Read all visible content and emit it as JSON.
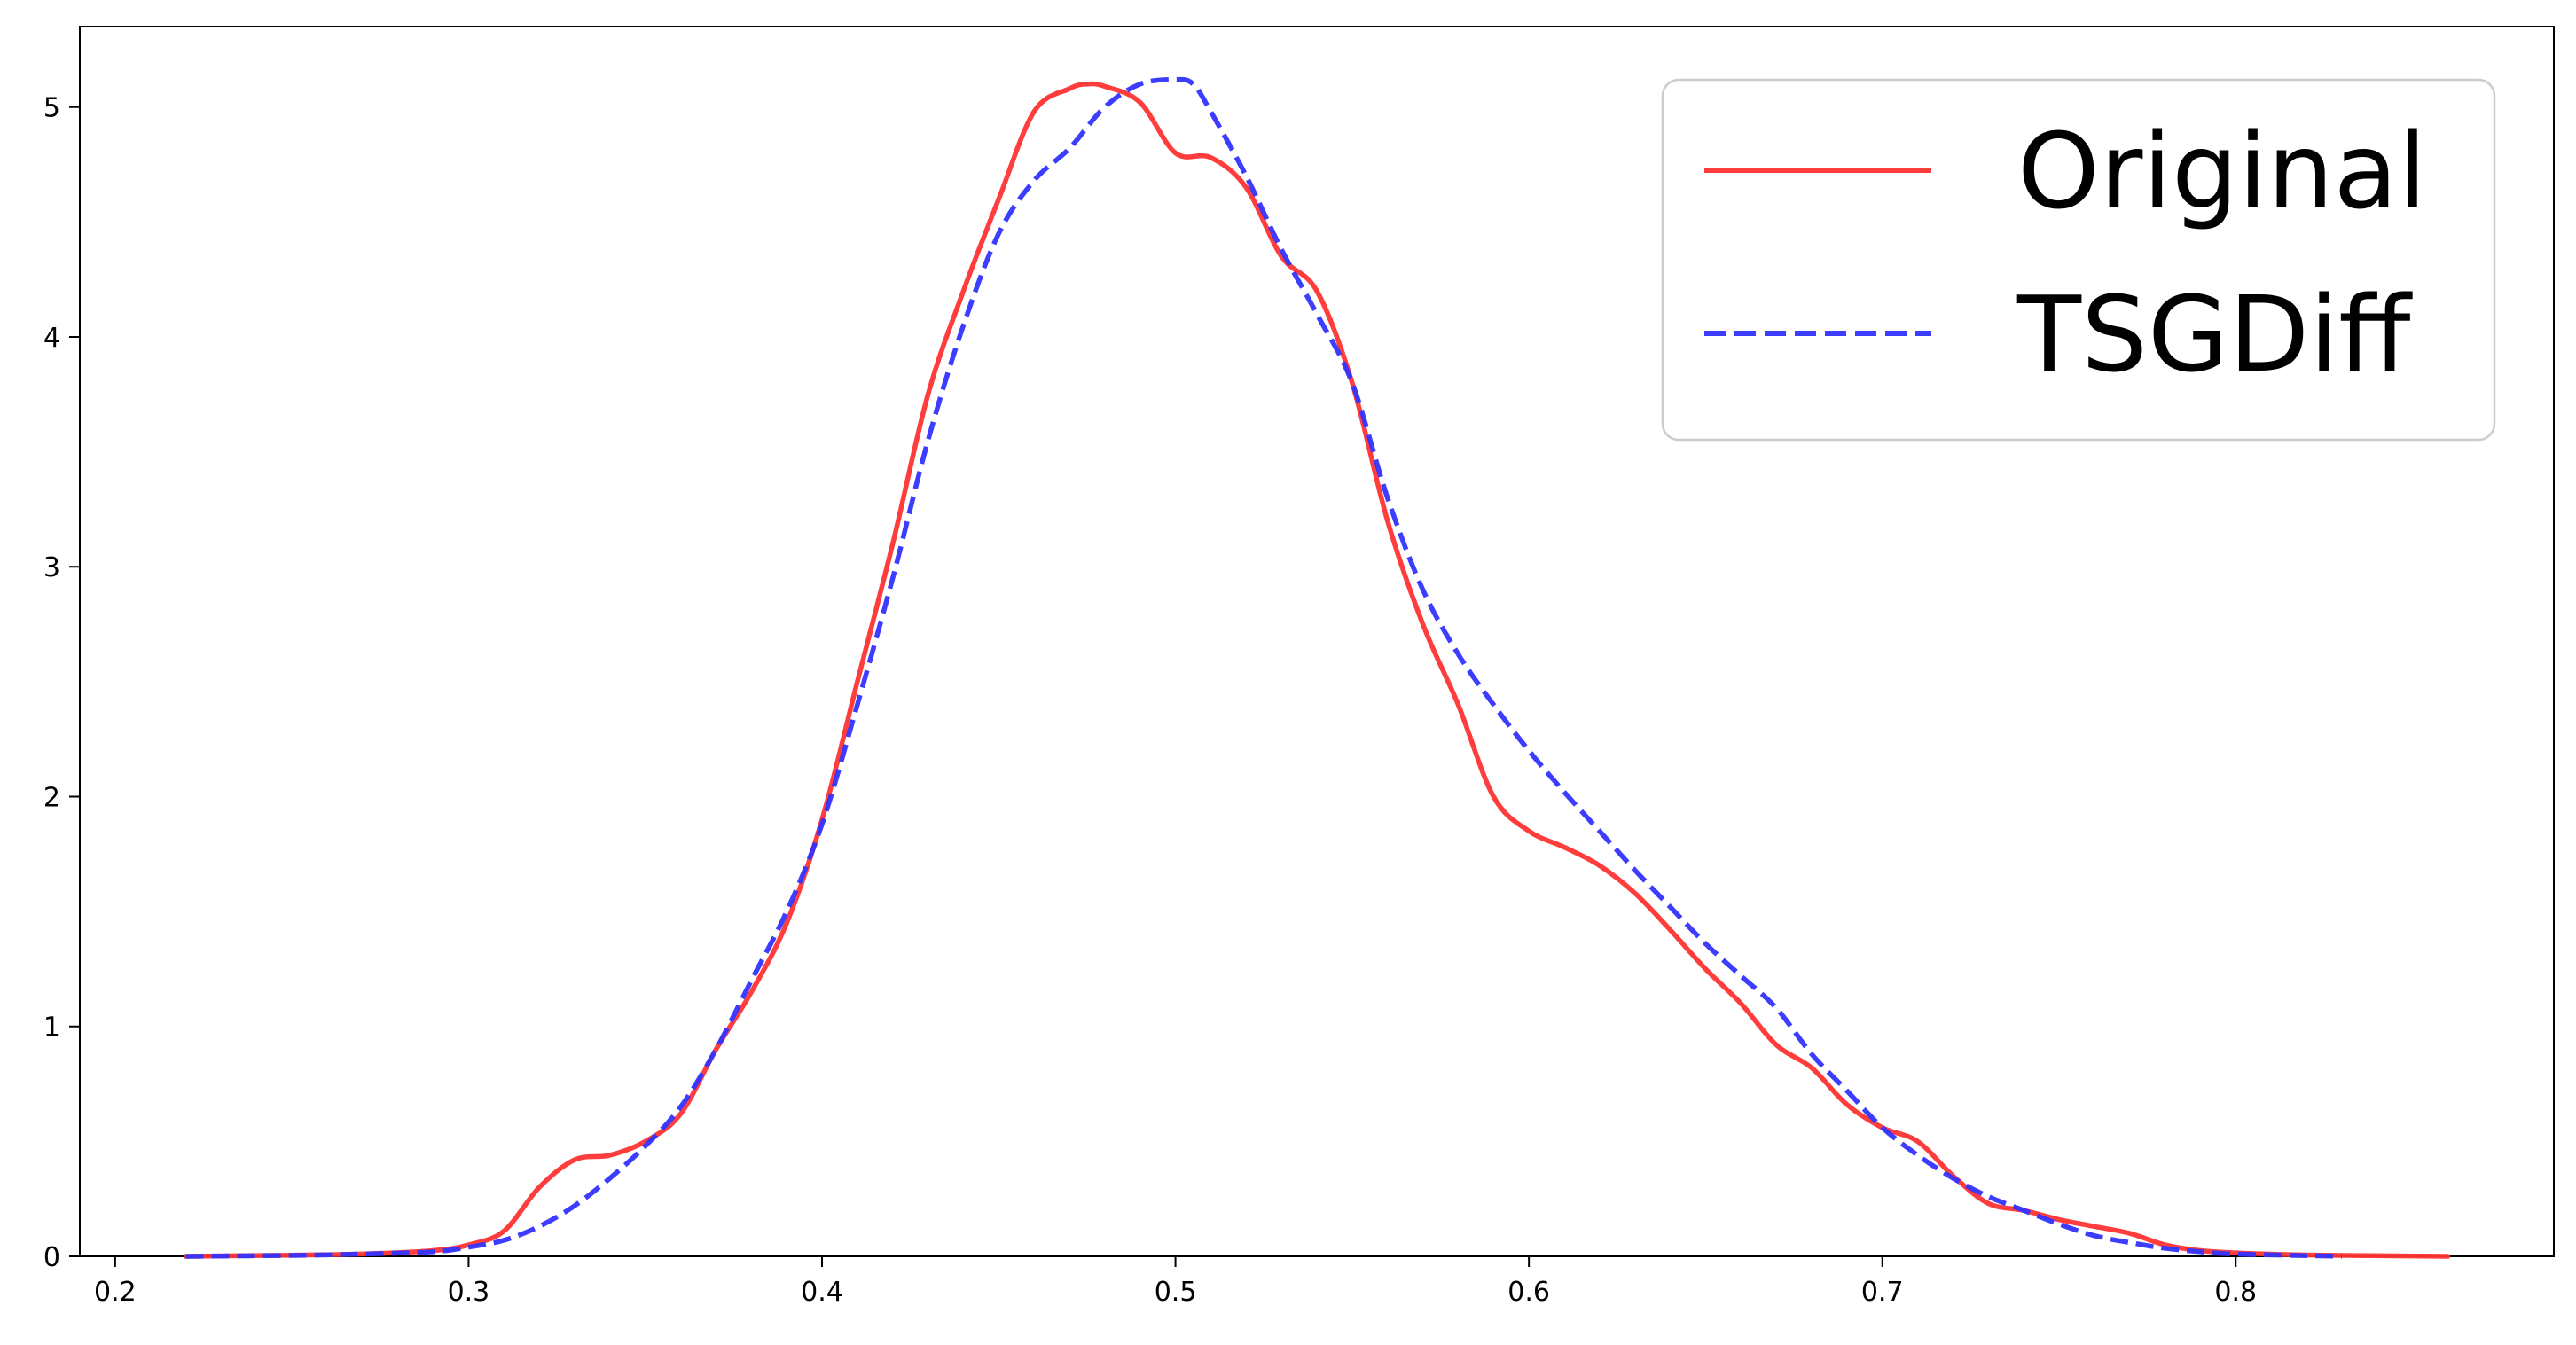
{
  "chart_data": {
    "type": "line",
    "title": "",
    "xlabel": "",
    "ylabel": "",
    "xlim": [
      0.19,
      0.89
    ],
    "ylim": [
      0,
      5.35
    ],
    "x_ticks": [
      "0.2",
      "0.3",
      "0.4",
      "0.5",
      "0.6",
      "0.7",
      "0.8"
    ],
    "y_ticks": [
      "0",
      "1",
      "2",
      "3",
      "4",
      "5"
    ],
    "grid": false,
    "legend_position": "top-right",
    "series": [
      {
        "name": "Original",
        "color": "#ff3333",
        "style": "solid",
        "x": [
          0.22,
          0.25,
          0.27,
          0.29,
          0.3,
          0.31,
          0.32,
          0.33,
          0.34,
          0.35,
          0.36,
          0.37,
          0.38,
          0.39,
          0.4,
          0.41,
          0.42,
          0.43,
          0.44,
          0.45,
          0.46,
          0.47,
          0.475,
          0.48,
          0.49,
          0.5,
          0.51,
          0.52,
          0.53,
          0.54,
          0.55,
          0.56,
          0.57,
          0.58,
          0.59,
          0.6,
          0.61,
          0.62,
          0.63,
          0.64,
          0.65,
          0.66,
          0.67,
          0.68,
          0.69,
          0.7,
          0.71,
          0.72,
          0.73,
          0.74,
          0.75,
          0.76,
          0.77,
          0.78,
          0.79,
          0.8,
          0.82,
          0.86
        ],
        "y": [
          0.0,
          0.005,
          0.01,
          0.025,
          0.05,
          0.11,
          0.3,
          0.42,
          0.44,
          0.5,
          0.62,
          0.9,
          1.15,
          1.45,
          1.9,
          2.5,
          3.1,
          3.75,
          4.2,
          4.6,
          4.98,
          5.08,
          5.1,
          5.09,
          5.02,
          4.8,
          4.78,
          4.65,
          4.35,
          4.2,
          3.8,
          3.2,
          2.75,
          2.4,
          2.0,
          1.85,
          1.78,
          1.7,
          1.58,
          1.42,
          1.25,
          1.1,
          0.92,
          0.82,
          0.66,
          0.56,
          0.5,
          0.35,
          0.23,
          0.2,
          0.16,
          0.13,
          0.1,
          0.05,
          0.025,
          0.015,
          0.006,
          0.0
        ]
      },
      {
        "name": "TSGDiff",
        "color": "#3333ff",
        "style": "dashed",
        "x": [
          0.22,
          0.25,
          0.27,
          0.29,
          0.3,
          0.31,
          0.32,
          0.33,
          0.34,
          0.35,
          0.36,
          0.37,
          0.38,
          0.39,
          0.4,
          0.41,
          0.42,
          0.43,
          0.44,
          0.45,
          0.46,
          0.47,
          0.48,
          0.49,
          0.5,
          0.505,
          0.51,
          0.52,
          0.53,
          0.54,
          0.55,
          0.56,
          0.57,
          0.58,
          0.59,
          0.6,
          0.61,
          0.62,
          0.63,
          0.64,
          0.65,
          0.66,
          0.67,
          0.68,
          0.69,
          0.7,
          0.71,
          0.72,
          0.73,
          0.74,
          0.75,
          0.76,
          0.77,
          0.78,
          0.79,
          0.8,
          0.83
        ],
        "y": [
          0.0,
          0.004,
          0.01,
          0.02,
          0.04,
          0.07,
          0.13,
          0.22,
          0.34,
          0.48,
          0.65,
          0.9,
          1.2,
          1.5,
          1.88,
          2.4,
          2.95,
          3.55,
          4.05,
          4.45,
          4.68,
          4.82,
          5.0,
          5.1,
          5.12,
          5.1,
          4.98,
          4.7,
          4.38,
          4.1,
          3.8,
          3.3,
          2.9,
          2.62,
          2.4,
          2.2,
          2.02,
          1.85,
          1.68,
          1.52,
          1.36,
          1.22,
          1.08,
          0.88,
          0.72,
          0.56,
          0.44,
          0.34,
          0.26,
          0.2,
          0.14,
          0.09,
          0.06,
          0.035,
          0.02,
          0.01,
          0.0
        ]
      }
    ]
  }
}
